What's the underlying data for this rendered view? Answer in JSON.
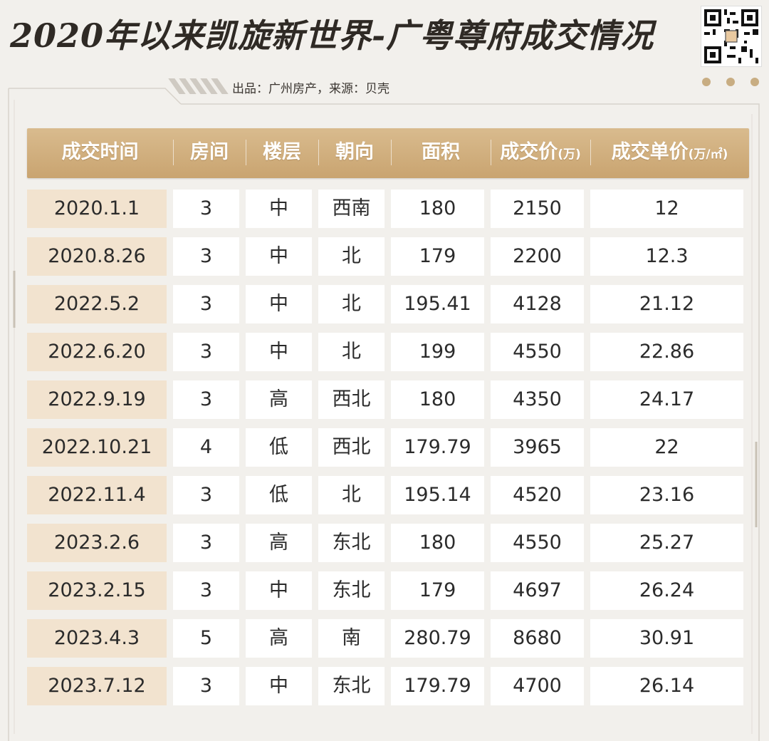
{
  "header": {
    "title": "2020年以来凯旋新世界-广粤尊府成交情况",
    "subtitle": "出品：广州房产，来源：贝壳"
  },
  "table": {
    "columns": [
      {
        "label": "成交时间",
        "unit": ""
      },
      {
        "label": "房间",
        "unit": ""
      },
      {
        "label": "楼层",
        "unit": ""
      },
      {
        "label": "朝向",
        "unit": ""
      },
      {
        "label": "面积",
        "unit": ""
      },
      {
        "label": "成交价",
        "unit": "(万)"
      },
      {
        "label": "成交单价",
        "unit": "(万/㎡)"
      }
    ],
    "rows": [
      [
        "2020.1.1",
        "3",
        "中",
        "西南",
        "180",
        "2150",
        "12"
      ],
      [
        "2020.8.26",
        "3",
        "中",
        "北",
        "179",
        "2200",
        "12.3"
      ],
      [
        "2022.5.2",
        "3",
        "中",
        "北",
        "195.41",
        "4128",
        "21.12"
      ],
      [
        "2022.6.20",
        "3",
        "中",
        "北",
        "199",
        "4550",
        "22.86"
      ],
      [
        "2022.9.19",
        "3",
        "高",
        "西北",
        "180",
        "4350",
        "24.17"
      ],
      [
        "2022.10.21",
        "4",
        "低",
        "西北",
        "179.79",
        "3965",
        "22"
      ],
      [
        "2022.11.4",
        "3",
        "低",
        "北",
        "195.14",
        "4520",
        "23.16"
      ],
      [
        "2023.2.6",
        "3",
        "高",
        "东北",
        "180",
        "4550",
        "25.27"
      ],
      [
        "2023.2.15",
        "3",
        "中",
        "东北",
        "179",
        "4697",
        "26.24"
      ],
      [
        "2023.4.3",
        "5",
        "高",
        "南",
        "280.79",
        "8680",
        "30.91"
      ],
      [
        "2023.7.12",
        "3",
        "中",
        "东北",
        "179.79",
        "4700",
        "26.14"
      ]
    ]
  },
  "colors": {
    "header_bg": "#d1b07f",
    "date_cell_bg": "#f2e3cf",
    "page_bg": "#f2f0ec",
    "accent_dots": "#c8ad82"
  },
  "icons": [
    "qr-code-icon"
  ]
}
